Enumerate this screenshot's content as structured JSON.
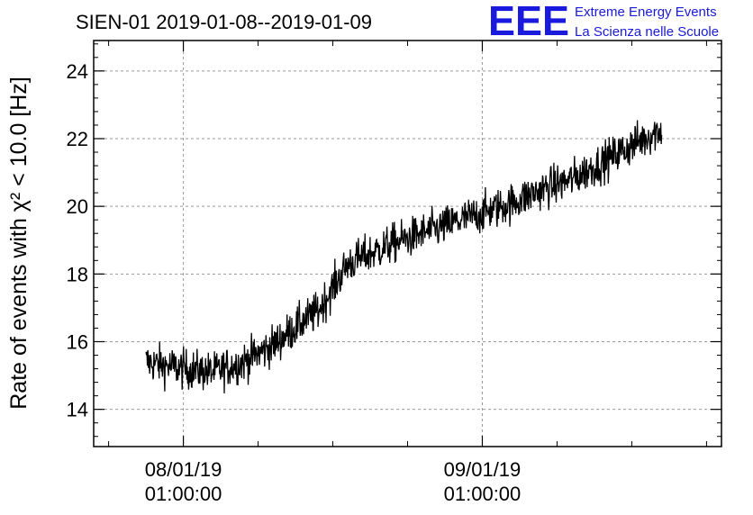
{
  "chart_data": {
    "type": "line",
    "title": "SIEN-01 2019-01-08--2019-01-09",
    "ylabel": "Rate of events with χ² < 10.0 [Hz]",
    "ylim": [
      12.9,
      24.9
    ],
    "yticks": [
      14,
      16,
      18,
      20,
      22,
      24
    ],
    "ytick_labels": [
      "14",
      "16",
      "18",
      "20",
      "22",
      "24"
    ],
    "xlim": [
      0.7,
      2.8
    ],
    "xticks": [
      {
        "value": 1.0,
        "label_line1": "08/01/19",
        "label_line2": "01:00:00"
      },
      {
        "value": 2.0,
        "label_line1": "09/01/19",
        "label_line2": "01:00:00"
      }
    ],
    "grid": true,
    "series": [
      {
        "color": "#000000",
        "x_start": 0.875,
        "x_end": 2.6,
        "trend_x": [
          0.875,
          1.0,
          1.1,
          1.2,
          1.3,
          1.4,
          1.45,
          1.55,
          1.7,
          1.8,
          2.0,
          2.1,
          2.2,
          2.3,
          2.4,
          2.5,
          2.6
        ],
        "trend_y": [
          15.4,
          15.2,
          15.1,
          15.4,
          15.9,
          16.6,
          16.9,
          18.3,
          18.9,
          19.2,
          19.8,
          20.1,
          20.5,
          20.8,
          21.3,
          21.8,
          22.3
        ],
        "noise_amplitude": 0.55
      }
    ]
  },
  "logo": {
    "letters": "EEE",
    "line1": "Extreme Energy Events",
    "line2": "La Scienza nelle Scuole",
    "color": "#1a1adc"
  }
}
